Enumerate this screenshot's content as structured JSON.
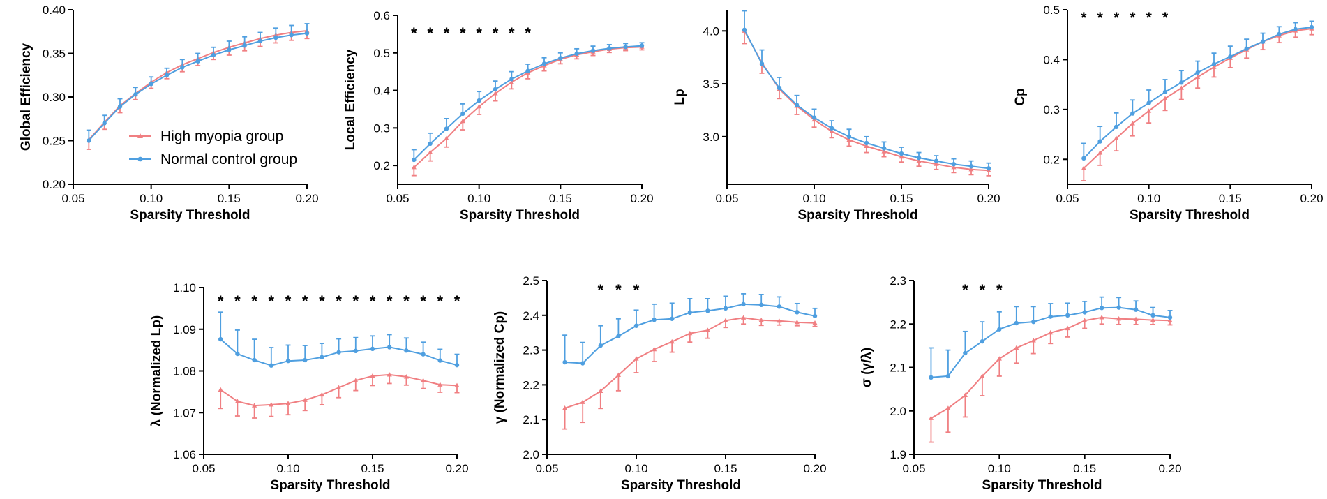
{
  "colors": {
    "high_myopia": "#f07f82",
    "normal_control": "#4f9fe0"
  },
  "legend": {
    "high_label": "High myopia group",
    "normal_label": "Normal control group"
  },
  "chart_data": [
    {
      "type": "line",
      "title": "",
      "xlabel": "Sparsity Threshold",
      "ylabel": "Global Efficiency",
      "xlim": [
        0.05,
        0.2
      ],
      "ylim": [
        0.2,
        0.4
      ],
      "x_ticks": [
        "0.05",
        "0.10",
        "0.15",
        "0.20"
      ],
      "y_ticks": [
        "0.20",
        "0.25",
        "0.30",
        "0.35",
        "0.40"
      ],
      "x": [
        0.06,
        0.07,
        0.08,
        0.09,
        0.1,
        0.11,
        0.12,
        0.13,
        0.14,
        0.15,
        0.16,
        0.17,
        0.18,
        0.19,
        0.2
      ],
      "series": [
        {
          "name": "High myopia group",
          "values": [
            0.251,
            0.271,
            0.29,
            0.304,
            0.317,
            0.328,
            0.337,
            0.344,
            0.351,
            0.357,
            0.362,
            0.367,
            0.371,
            0.374,
            0.376
          ],
          "errors": [
            0.011,
            0.008,
            0.008,
            0.007,
            0.007,
            0.007,
            0.008,
            0.008,
            0.008,
            0.009,
            0.009,
            0.009,
            0.009,
            0.009,
            0.009
          ]
        },
        {
          "name": "Normal control group",
          "values": [
            0.25,
            0.27,
            0.289,
            0.303,
            0.315,
            0.325,
            0.334,
            0.341,
            0.348,
            0.354,
            0.359,
            0.364,
            0.368,
            0.371,
            0.373
          ],
          "errors": [
            0.012,
            0.009,
            0.009,
            0.008,
            0.008,
            0.008,
            0.009,
            0.009,
            0.009,
            0.01,
            0.01,
            0.01,
            0.011,
            0.011,
            0.011
          ]
        }
      ],
      "significance_x": [],
      "show_legend": true
    },
    {
      "type": "line",
      "title": "",
      "xlabel": "Sparsity Threshold",
      "ylabel": "Local Efficiency",
      "xlim": [
        0.05,
        0.2
      ],
      "ylim": [
        0.15,
        0.6
      ],
      "x_ticks": [
        "0.05",
        "0.10",
        "0.15",
        "0.20"
      ],
      "y_ticks": [
        "0.2",
        "0.3",
        "0.4",
        "0.5",
        "0.6"
      ],
      "x": [
        0.06,
        0.07,
        0.08,
        0.09,
        0.1,
        0.11,
        0.12,
        0.13,
        0.14,
        0.15,
        0.16,
        0.17,
        0.18,
        0.19,
        0.2
      ],
      "series": [
        {
          "name": "High myopia group",
          "values": [
            0.195,
            0.235,
            0.272,
            0.318,
            0.357,
            0.392,
            0.422,
            0.447,
            0.466,
            0.483,
            0.495,
            0.503,
            0.51,
            0.514,
            0.516
          ],
          "errors": [
            0.022,
            0.023,
            0.023,
            0.023,
            0.021,
            0.02,
            0.018,
            0.016,
            0.014,
            0.012,
            0.011,
            0.01,
            0.009,
            0.008,
            0.008
          ]
        },
        {
          "name": "Normal control group",
          "values": [
            0.215,
            0.258,
            0.298,
            0.338,
            0.373,
            0.403,
            0.43,
            0.452,
            0.471,
            0.486,
            0.498,
            0.506,
            0.512,
            0.516,
            0.519
          ],
          "errors": [
            0.027,
            0.028,
            0.027,
            0.026,
            0.024,
            0.022,
            0.02,
            0.018,
            0.016,
            0.014,
            0.013,
            0.012,
            0.01,
            0.009,
            0.008
          ]
        }
      ],
      "significance_x": [
        0.06,
        0.07,
        0.08,
        0.09,
        0.1,
        0.11,
        0.12,
        0.13
      ],
      "show_legend": false
    },
    {
      "type": "line",
      "title": "",
      "xlabel": "Sparsity Threshold",
      "ylabel": "Lp",
      "xlim": [
        0.05,
        0.2
      ],
      "ylim": [
        2.55,
        4.2
      ],
      "x_ticks": [
        "0.05",
        "0.10",
        "0.15",
        "0.20"
      ],
      "y_ticks": [
        "3.0",
        "3.5",
        "4.0"
      ],
      "x": [
        0.06,
        0.07,
        0.08,
        0.09,
        0.1,
        0.11,
        0.12,
        0.13,
        0.14,
        0.15,
        0.16,
        0.17,
        0.18,
        0.19,
        0.2
      ],
      "series": [
        {
          "name": "High myopia group",
          "values": [
            4.0,
            3.7,
            3.45,
            3.29,
            3.16,
            3.05,
            2.97,
            2.91,
            2.86,
            2.81,
            2.77,
            2.74,
            2.71,
            2.69,
            2.68
          ],
          "errors": [
            0.12,
            0.1,
            0.09,
            0.08,
            0.07,
            0.06,
            0.06,
            0.06,
            0.05,
            0.05,
            0.05,
            0.05,
            0.05,
            0.05,
            0.05
          ]
        },
        {
          "name": "Normal control group",
          "values": [
            4.01,
            3.69,
            3.46,
            3.3,
            3.18,
            3.08,
            3.0,
            2.94,
            2.89,
            2.84,
            2.8,
            2.77,
            2.74,
            2.72,
            2.7
          ],
          "errors": [
            0.18,
            0.13,
            0.1,
            0.09,
            0.08,
            0.07,
            0.07,
            0.06,
            0.06,
            0.06,
            0.05,
            0.05,
            0.05,
            0.05,
            0.05
          ]
        }
      ],
      "significance_x": [],
      "show_legend": false
    },
    {
      "type": "line",
      "title": "",
      "xlabel": "Sparsity Threshold",
      "ylabel": "Cp",
      "xlim": [
        0.05,
        0.2
      ],
      "ylim": [
        0.15,
        0.5
      ],
      "x_ticks": [
        "0.05",
        "0.10",
        "0.15",
        "0.20"
      ],
      "y_ticks": [
        "0.2",
        "0.3",
        "0.4",
        "0.5"
      ],
      "x": [
        0.06,
        0.07,
        0.08,
        0.09,
        0.1,
        0.11,
        0.12,
        0.13,
        0.14,
        0.15,
        0.16,
        0.17,
        0.18,
        0.19,
        0.2
      ],
      "series": [
        {
          "name": "High myopia group",
          "values": [
            0.182,
            0.213,
            0.242,
            0.272,
            0.297,
            0.322,
            0.343,
            0.365,
            0.385,
            0.403,
            0.42,
            0.436,
            0.448,
            0.458,
            0.462
          ],
          "errors": [
            0.025,
            0.025,
            0.025,
            0.025,
            0.024,
            0.024,
            0.023,
            0.022,
            0.02,
            0.019,
            0.017,
            0.016,
            0.014,
            0.013,
            0.012
          ]
        },
        {
          "name": "Normal control group",
          "values": [
            0.202,
            0.236,
            0.265,
            0.292,
            0.313,
            0.335,
            0.354,
            0.374,
            0.391,
            0.406,
            0.422,
            0.436,
            0.451,
            0.461,
            0.465
          ],
          "errors": [
            0.03,
            0.03,
            0.028,
            0.027,
            0.026,
            0.025,
            0.024,
            0.023,
            0.022,
            0.021,
            0.019,
            0.017,
            0.015,
            0.013,
            0.012
          ]
        }
      ],
      "significance_x": [
        0.06,
        0.07,
        0.08,
        0.09,
        0.1,
        0.11
      ],
      "show_legend": false
    },
    {
      "type": "line",
      "title": "",
      "xlabel": "Sparsity Threshold",
      "ylabel": "λ (Normalized Lp)",
      "xlim": [
        0.05,
        0.2
      ],
      "ylim": [
        1.06,
        1.1
      ],
      "x_ticks": [
        "0.05",
        "0.10",
        "0.15",
        "0.20"
      ],
      "y_ticks": [
        "1.06",
        "1.07",
        "1.08",
        "1.09",
        "1.10"
      ],
      "x": [
        0.06,
        0.07,
        0.08,
        0.09,
        0.1,
        0.11,
        0.12,
        0.13,
        0.14,
        0.15,
        0.16,
        0.17,
        0.18,
        0.19,
        0.2
      ],
      "series": [
        {
          "name": "High myopia group",
          "values": [
            1.0755,
            1.0727,
            1.0717,
            1.0719,
            1.0722,
            1.073,
            1.0743,
            1.076,
            1.0777,
            1.0788,
            1.0791,
            1.0786,
            1.0777,
            1.0767,
            1.0765
          ],
          "errors": [
            0.0045,
            0.0035,
            0.003,
            0.0028,
            0.0027,
            0.0025,
            0.0024,
            0.0024,
            0.0024,
            0.0023,
            0.0021,
            0.002,
            0.0019,
            0.0018,
            0.0017
          ]
        },
        {
          "name": "Normal control group",
          "values": [
            1.0876,
            1.0841,
            1.0826,
            1.0813,
            1.0824,
            1.0826,
            1.0833,
            1.0845,
            1.0848,
            1.0853,
            1.0857,
            1.0849,
            1.084,
            1.0825,
            1.0814
          ],
          "errors": [
            0.0065,
            0.0057,
            0.005,
            0.0043,
            0.0038,
            0.0035,
            0.0033,
            0.0032,
            0.0032,
            0.0031,
            0.003,
            0.003,
            0.0029,
            0.0027,
            0.0026
          ]
        }
      ],
      "significance_x": [
        0.06,
        0.07,
        0.08,
        0.09,
        0.1,
        0.11,
        0.12,
        0.13,
        0.14,
        0.15,
        0.16,
        0.17,
        0.18,
        0.19,
        0.2
      ],
      "show_legend": false
    },
    {
      "type": "line",
      "title": "",
      "xlabel": "Sparsity Threshold",
      "ylabel": "γ (Normalized Cp)",
      "xlim": [
        0.05,
        0.2
      ],
      "ylim": [
        2.0,
        2.5
      ],
      "x_ticks": [
        "0.05",
        "0.10",
        "0.15",
        "0.20"
      ],
      "y_ticks": [
        "2.0",
        "2.1",
        "2.2",
        "2.3",
        "2.4",
        "2.5"
      ],
      "x": [
        0.06,
        0.07,
        0.08,
        0.09,
        0.1,
        0.11,
        0.12,
        0.13,
        0.14,
        0.15,
        0.16,
        0.17,
        0.18,
        0.19,
        0.2
      ],
      "series": [
        {
          "name": "High myopia group",
          "values": [
            2.133,
            2.15,
            2.182,
            2.228,
            2.275,
            2.302,
            2.324,
            2.348,
            2.357,
            2.385,
            2.393,
            2.386,
            2.384,
            2.38,
            2.378
          ],
          "errors": [
            0.06,
            0.058,
            0.05,
            0.045,
            0.04,
            0.035,
            0.03,
            0.025,
            0.023,
            0.02,
            0.018,
            0.015,
            0.012,
            0.01,
            0.01
          ]
        },
        {
          "name": "Normal control group",
          "values": [
            2.265,
            2.262,
            2.313,
            2.34,
            2.37,
            2.387,
            2.39,
            2.408,
            2.413,
            2.42,
            2.432,
            2.43,
            2.425,
            2.409,
            2.398
          ],
          "errors": [
            0.078,
            0.06,
            0.057,
            0.05,
            0.045,
            0.045,
            0.045,
            0.04,
            0.035,
            0.035,
            0.03,
            0.03,
            0.028,
            0.025,
            0.022
          ]
        }
      ],
      "significance_x": [
        0.08,
        0.09,
        0.1
      ],
      "show_legend": false
    },
    {
      "type": "line",
      "title": "",
      "xlabel": "Sparsity Threshold",
      "ylabel": "σ (γ/λ)",
      "xlim": [
        0.05,
        0.2
      ],
      "ylim": [
        1.9,
        2.3
      ],
      "x_ticks": [
        "0.05",
        "0.10",
        "0.15",
        "0.20"
      ],
      "y_ticks": [
        "1.9",
        "2.0",
        "2.1",
        "2.2",
        "2.3"
      ],
      "x": [
        0.06,
        0.07,
        0.08,
        0.09,
        0.1,
        0.11,
        0.12,
        0.13,
        0.14,
        0.15,
        0.16,
        0.17,
        0.18,
        0.19,
        0.2
      ],
      "series": [
        {
          "name": "High myopia group",
          "values": [
            1.983,
            2.006,
            2.036,
            2.08,
            2.12,
            2.145,
            2.162,
            2.18,
            2.19,
            2.208,
            2.215,
            2.212,
            2.211,
            2.209,
            2.208
          ],
          "errors": [
            0.055,
            0.055,
            0.05,
            0.045,
            0.04,
            0.035,
            0.03,
            0.025,
            0.02,
            0.018,
            0.015,
            0.013,
            0.012,
            0.01,
            0.01
          ]
        },
        {
          "name": "Normal control group",
          "values": [
            2.077,
            2.08,
            2.133,
            2.16,
            2.188,
            2.202,
            2.205,
            2.217,
            2.22,
            2.227,
            2.237,
            2.238,
            2.233,
            2.22,
            2.215
          ],
          "errors": [
            0.068,
            0.06,
            0.05,
            0.045,
            0.04,
            0.038,
            0.035,
            0.03,
            0.028,
            0.025,
            0.025,
            0.023,
            0.02,
            0.018,
            0.016
          ]
        }
      ],
      "significance_x": [
        0.08,
        0.09,
        0.1
      ],
      "show_legend": false
    }
  ]
}
